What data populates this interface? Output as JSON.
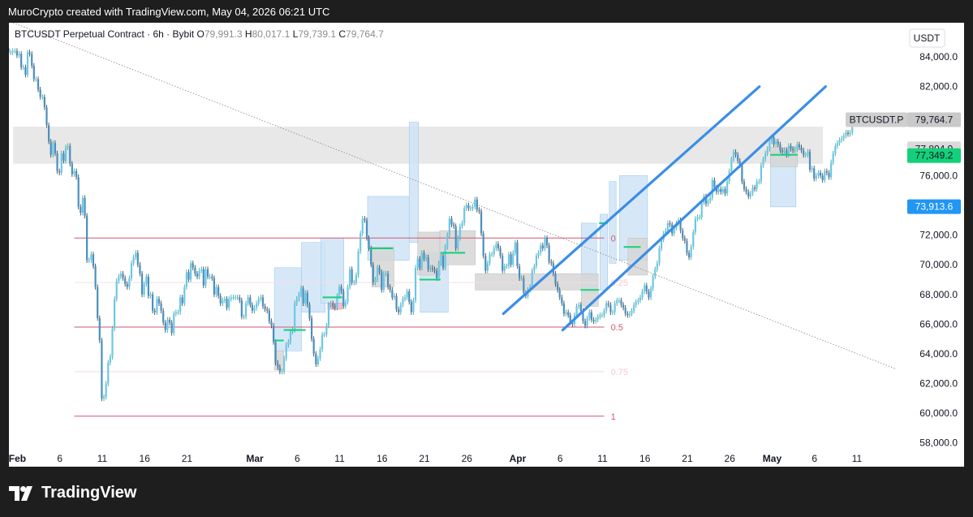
{
  "header": {
    "caption": "MuroCrypto created with TradingView.com, May 04, 2026 06:21 UTC"
  },
  "footer": {
    "brand": "TradingView"
  },
  "colors": {
    "up": "#26a69a",
    "body_up": "#6ec6e6",
    "body_down": "#4a8fbf",
    "fib": "#d0566f",
    "channel": "#3a8ee6",
    "zone": "#e8e8e8",
    "green_label": "#12d17a",
    "blue_label": "#2196f3"
  },
  "chart_data": {
    "type": "candlestick",
    "symbol_line": {
      "name": "BTCUSDT Perpetual Contract · 6h · Bybit",
      "o_label": "O",
      "o_value": "79,991.3",
      "h_label": "H",
      "h_value": "80,017.1",
      "l_label": "L",
      "l_value": "79,739.1",
      "c_label": "C",
      "c_value": "79,764.7"
    },
    "currency": "USDT",
    "y_axis": {
      "ticks": [
        "84,000.0",
        "82,000.0",
        "80,000.0",
        "78,000.0",
        "76,000.0",
        "74,000.0",
        "72,000.0",
        "70,000.0",
        "68,000.0",
        "66,000.0",
        "64,000.0",
        "62,000.0",
        "60,000.0",
        "58,000.0"
      ],
      "tick_values": [
        84000,
        82000,
        80000,
        78000,
        76000,
        74000,
        72000,
        70000,
        68000,
        66000,
        64000,
        62000,
        60000,
        58000
      ],
      "range": [
        57000,
        86300
      ]
    },
    "x_axis": {
      "ticks": [
        "Feb",
        "6",
        "11",
        "16",
        "21",
        "Mar",
        "6",
        "11",
        "16",
        "21",
        "26",
        "Apr",
        "6",
        "11",
        "16",
        "21",
        "26",
        "May",
        "6",
        "11"
      ],
      "bold": [
        true,
        false,
        false,
        false,
        false,
        true,
        false,
        false,
        false,
        false,
        false,
        true,
        false,
        false,
        false,
        false,
        false,
        true,
        false,
        false
      ],
      "tick_days": [
        0,
        5,
        10,
        15,
        20,
        28,
        33,
        38,
        43,
        48,
        53,
        59,
        64,
        69,
        74,
        79,
        84,
        89,
        94,
        99
      ],
      "range": [
        -1,
        103.5
      ]
    },
    "price_labels": [
      {
        "text": "BTCUSDT.P",
        "style": "dark-grey"
      },
      {
        "text": "79,764.7",
        "value": 79764.7,
        "style": "dark-grey"
      },
      {
        "text": "77,804.9",
        "value": 77804.9,
        "style": "grey"
      },
      {
        "text": "77,349.2",
        "value": 77349.2,
        "style": "green"
      },
      {
        "text": "73,913.6",
        "value": 73913.6,
        "style": "blue"
      }
    ],
    "fib_levels": [
      {
        "label": "0",
        "value": 71800
      },
      {
        "label": "0.25",
        "value": 68800
      },
      {
        "label": "0.5",
        "value": 65800
      },
      {
        "label": "0.75",
        "value": 62800
      },
      {
        "label": "1",
        "value": 59800
      }
    ],
    "fib_range": {
      "start_day": 6.7,
      "end_day": 69.2
    },
    "resistance_zone": {
      "low": 76800,
      "high": 79300,
      "start_day": -0.5,
      "end_day": 95
    },
    "channel": {
      "upper": {
        "from": [
          57.3,
          66700
        ],
        "to": [
          87.5,
          82000
        ]
      },
      "lower": {
        "from": [
          64.3,
          65600
        ],
        "to": [
          95.3,
          82000
        ]
      }
    },
    "trend_line": {
      "from": [
        -0.5,
        86300
      ],
      "to": [
        103.5,
        63000
      ]
    },
    "candles": {
      "start_day": -1.8,
      "step_days": 0.25,
      "opens": [
        85500,
        85400,
        84800,
        84600,
        84300,
        84300,
        84400,
        84400,
        84100,
        84200,
        83300,
        83300,
        82800,
        84300,
        84200,
        83400,
        82500,
        82500,
        81800,
        81300,
        81300,
        80600,
        79400,
        78300,
        77400,
        78200,
        77500,
        76300,
        76200,
        77500,
        77000,
        77900,
        78000,
        76800,
        76100,
        76300,
        75900,
        73900,
        73500,
        74500,
        73300,
        70300,
        70300,
        70700,
        69900,
        68500,
        66400,
        64900,
        61000,
        61100,
        62000,
        63400,
        63800,
        65700,
        67700,
        68900,
        69200,
        69400,
        69100,
        68700,
        68500,
        69100,
        70100,
        70500,
        70800,
        70000,
        69400,
        68000,
        68700,
        69200,
        67900,
        68000,
        66900,
        66800,
        67700,
        67400,
        66900,
        66100,
        65600,
        66300,
        66100,
        65400,
        66700,
        66800,
        66800,
        67800,
        67400,
        68500,
        69500,
        69000,
        70100,
        69800,
        69400,
        69200,
        69600,
        69700,
        68600,
        69700,
        69200,
        69200,
        69100,
        68000,
        68500,
        67900,
        67400,
        67600,
        67700,
        67100,
        67700,
        67800,
        67800,
        67800,
        67800,
        67600,
        66500,
        66500,
        67400,
        67800,
        67300,
        66900,
        67100,
        67400,
        67700,
        67800,
        67200,
        67000,
        66900,
        66200,
        65900,
        64800,
        63400,
        63100,
        62800,
        62800,
        63700,
        64600,
        64800,
        65500,
        65600,
        67400,
        67700,
        68000,
        68400,
        67400,
        68100,
        67300,
        66400,
        65000,
        64000,
        63300,
        63700,
        64300,
        65300,
        65300,
        65900,
        67300,
        67400,
        67200,
        67100,
        67900,
        68500,
        68200,
        67200,
        67500,
        68500,
        69700,
        68800,
        68800,
        69300,
        70900,
        72100,
        73100,
        73000,
        71800,
        71100,
        70000,
        68800,
        69000,
        69800,
        69500,
        68300,
        69400,
        69400,
        68500,
        68300,
        67800,
        67900,
        67000,
        66800,
        67300,
        67700,
        67800,
        68200,
        67500,
        66800,
        67600,
        69800,
        70400,
        69800,
        70800,
        70400,
        70500,
        69700,
        69800,
        69700,
        69600,
        69100,
        70100,
        70600,
        69800,
        71200,
        72000,
        73100,
        72700,
        72600,
        71100,
        71800,
        72600,
        72800,
        73800,
        74000,
        73800,
        73800,
        73900,
        74400,
        73700,
        73600,
        72100,
        70600,
        69600,
        70100,
        70700,
        70700,
        71100,
        71400,
        71100,
        70600,
        69600,
        69900,
        69900,
        70700,
        70000,
        70800,
        71500,
        69900,
        69100,
        69100,
        68100,
        67900,
        68300,
        68500,
        69600,
        69900,
        70600,
        70800,
        71300,
        71100,
        71800,
        71300,
        70200,
        70100,
        69400,
        68700,
        68300,
        67800,
        67400,
        66700,
        66800,
        66600,
        66100,
        66000,
        66600,
        67200,
        67300,
        66900,
        66200,
        65900,
        66400,
        66800,
        66300,
        66200,
        66300,
        66500,
        66600,
        66600,
        66900,
        67400,
        67300,
        66800,
        66800,
        67400,
        67600,
        67600,
        67300,
        67100,
        66700,
        66600,
        66700,
        66900,
        67300,
        67500,
        67600,
        67800,
        68200,
        68600,
        68200,
        67800,
        68400,
        69200,
        69700,
        70100,
        71100,
        71700,
        72100,
        72300,
        72800,
        72700,
        72100,
        72500,
        72800,
        73000,
        72300,
        71800,
        71600,
        70800,
        70500,
        71200,
        72200,
        73100,
        73200,
        73200,
        74200,
        74600,
        74100,
        74300,
        74500,
        75700,
        75200,
        74900,
        75100,
        74900,
        75100,
        74800,
        75600,
        76300,
        77100,
        77600,
        77400,
        77000,
        76700,
        75600,
        75100,
        74900,
        74600,
        74800,
        75200,
        75100,
        75600,
        75600,
        76700,
        77100,
        77500,
        77800,
        78300,
        78600,
        78100,
        78300,
        78100,
        77700,
        77600,
        77700,
        77400,
        78000,
        77800,
        77700,
        77800,
        78100,
        77900,
        77700,
        77400,
        77400,
        77600,
        76400,
        76500,
        75800,
        76000,
        76200,
        76000,
        75700,
        76300,
        76200,
        75900,
        76900,
        77500,
        78000,
        78200,
        78400,
        78500,
        78700,
        78900,
        78800,
        78900,
        79500,
        79900
      ],
      "closes": [
        85400,
        84800,
        84600,
        84300,
        84300,
        84400,
        84400,
        84100,
        84200,
        83300,
        83300,
        82800,
        84300,
        84200,
        83400,
        82500,
        82500,
        81800,
        81300,
        81300,
        80600,
        79400,
        78300,
        77400,
        78200,
        77500,
        76300,
        76200,
        77500,
        77000,
        77900,
        78000,
        76800,
        76100,
        76300,
        75900,
        73900,
        73500,
        74500,
        73300,
        70300,
        70300,
        70700,
        69900,
        68500,
        66400,
        64900,
        61000,
        61100,
        62000,
        63400,
        63800,
        65700,
        67700,
        68900,
        69200,
        69400,
        69100,
        68700,
        68500,
        69100,
        70100,
        70500,
        70800,
        70000,
        69400,
        68000,
        68700,
        69200,
        67900,
        68000,
        66900,
        66800,
        67700,
        67400,
        66900,
        66100,
        65600,
        66300,
        66100,
        65400,
        66700,
        66800,
        66800,
        67800,
        67400,
        68500,
        69500,
        69000,
        70100,
        69800,
        69400,
        69200,
        69600,
        69700,
        68600,
        69700,
        69200,
        69200,
        69100,
        68000,
        68500,
        67900,
        67400,
        67600,
        67700,
        67100,
        67700,
        67800,
        67800,
        67800,
        67800,
        67600,
        66500,
        66500,
        67400,
        67800,
        67300,
        66900,
        67100,
        67400,
        67700,
        67800,
        67200,
        67000,
        66900,
        66200,
        65900,
        64800,
        63400,
        63100,
        62800,
        62800,
        63700,
        64600,
        64800,
        65500,
        65600,
        67400,
        67700,
        68000,
        68400,
        67400,
        68100,
        67300,
        66400,
        65000,
        64000,
        63300,
        63700,
        64300,
        65300,
        65300,
        65900,
        67300,
        67400,
        67200,
        67100,
        67900,
        68500,
        68200,
        67200,
        67500,
        68500,
        69700,
        68800,
        68800,
        69300,
        70900,
        72100,
        73100,
        73000,
        71800,
        71100,
        70000,
        68800,
        69000,
        69800,
        69500,
        68300,
        69400,
        69400,
        68500,
        68300,
        67800,
        67900,
        67000,
        66800,
        67300,
        67700,
        67800,
        68200,
        67500,
        66800,
        67600,
        69800,
        70400,
        69800,
        70800,
        70400,
        70500,
        69700,
        69800,
        69700,
        69600,
        69100,
        70100,
        70600,
        69800,
        71200,
        72000,
        73100,
        72700,
        72600,
        71100,
        71800,
        72600,
        72800,
        73800,
        74000,
        73800,
        73800,
        73900,
        74400,
        73700,
        73600,
        72100,
        70600,
        69600,
        70100,
        70700,
        70700,
        71100,
        71400,
        71100,
        70600,
        69600,
        69900,
        69900,
        70700,
        70000,
        70800,
        71500,
        69900,
        69100,
        69100,
        68100,
        67900,
        68300,
        68500,
        69600,
        69900,
        70600,
        70800,
        71300,
        71100,
        71800,
        71300,
        70200,
        70100,
        69400,
        68700,
        68300,
        67800,
        67400,
        66700,
        66800,
        66600,
        66100,
        66000,
        66600,
        67200,
        67300,
        66900,
        66200,
        65900,
        66400,
        66800,
        66300,
        66200,
        66300,
        66500,
        66600,
        66600,
        66900,
        67400,
        67300,
        66800,
        66800,
        67400,
        67600,
        67600,
        67300,
        67100,
        66700,
        66600,
        66700,
        66900,
        67300,
        67500,
        67600,
        67800,
        68200,
        68600,
        68200,
        67800,
        68400,
        69200,
        69700,
        70100,
        71100,
        71700,
        72100,
        72300,
        72800,
        72700,
        72100,
        72500,
        72800,
        73000,
        72300,
        71800,
        71600,
        70800,
        70500,
        71200,
        72200,
        73100,
        73200,
        73200,
        74200,
        74600,
        74100,
        74300,
        74500,
        75700,
        75200,
        74900,
        75100,
        74900,
        75100,
        74800,
        75600,
        76300,
        77100,
        77600,
        77400,
        77000,
        76700,
        75600,
        75100,
        74900,
        74600,
        74800,
        75200,
        75100,
        75600,
        75600,
        76700,
        77100,
        77500,
        77800,
        78300,
        78600,
        78100,
        78300,
        78100,
        77700,
        77600,
        77700,
        77400,
        78000,
        77800,
        77700,
        77800,
        78100,
        77900,
        77700,
        77400,
        77400,
        77600,
        76400,
        76500,
        75800,
        76000,
        76200,
        76000,
        75700,
        76300,
        76200,
        75900,
        76900,
        77500,
        78000,
        78200,
        78400,
        78500,
        78700,
        78900,
        78800,
        78900,
        79500,
        79900,
        79800
      ]
    },
    "order_blocks": [
      {
        "d0": 46.2,
        "d1": 47.3,
        "lo": 71500,
        "hi": 79600,
        "type": "blue"
      },
      {
        "d0": 41.3,
        "d1": 46.2,
        "lo": 70300,
        "hi": 74600,
        "type": "blue"
      },
      {
        "d0": 33.5,
        "d1": 36.3,
        "lo": 66800,
        "hi": 71500,
        "type": "blue"
      },
      {
        "d0": 30.3,
        "d1": 33.5,
        "lo": 64200,
        "hi": 69800,
        "type": "blue"
      },
      {
        "d0": 35.8,
        "d1": 38.5,
        "lo": 67400,
        "hi": 71800,
        "type": "blue"
      },
      {
        "d0": 47.5,
        "d1": 50.8,
        "lo": 66800,
        "hi": 70800,
        "type": "blue"
      },
      {
        "d0": 66.5,
        "d1": 68.3,
        "lo": 68300,
        "hi": 72800,
        "type": "blue"
      },
      {
        "d0": 68.7,
        "d1": 69.6,
        "lo": 68300,
        "hi": 73400,
        "type": "blue"
      },
      {
        "d0": 69.8,
        "d1": 70.6,
        "lo": 70100,
        "hi": 75600,
        "type": "blue"
      },
      {
        "d0": 71.0,
        "d1": 74.3,
        "lo": 70300,
        "hi": 76000,
        "type": "blue"
      },
      {
        "d0": 88.8,
        "d1": 91.8,
        "lo": 73900,
        "hi": 77600,
        "type": "blue"
      },
      {
        "d0": 30.3,
        "d1": 31.4,
        "lo": 62900,
        "hi": 64200,
        "type": "grey"
      },
      {
        "d0": 41.8,
        "d1": 44.4,
        "lo": 68500,
        "hi": 71200,
        "type": "grey"
      },
      {
        "d0": 47.2,
        "d1": 49.9,
        "lo": 69300,
        "hi": 72200,
        "type": "grey"
      },
      {
        "d0": 49.8,
        "d1": 54.0,
        "lo": 70000,
        "hi": 72300,
        "type": "grey"
      },
      {
        "d0": 54.0,
        "d1": 68.5,
        "lo": 68300,
        "hi": 69400,
        "type": "grey"
      },
      {
        "d0": 66.5,
        "d1": 68.5,
        "lo": 67200,
        "hi": 68200,
        "type": "grey"
      },
      {
        "d0": 72.0,
        "d1": 74.3,
        "lo": 69300,
        "hi": 71800,
        "type": "grey"
      },
      {
        "d0": 88.8,
        "d1": 92.0,
        "lo": 76600,
        "hi": 77900,
        "type": "grey"
      },
      {
        "d0": 36.6,
        "d1": 38.3,
        "lo": 67000,
        "hi": 67400,
        "type": "pink"
      }
    ],
    "green_marks": [
      {
        "d0": 30.3,
        "d1": 31.4,
        "value": 64900
      },
      {
        "d0": 31.4,
        "d1": 34.0,
        "value": 65600
      },
      {
        "d0": 36.0,
        "d1": 38.3,
        "value": 67800
      },
      {
        "d0": 41.5,
        "d1": 44.3,
        "value": 71100
      },
      {
        "d0": 47.4,
        "d1": 49.9,
        "value": 69000
      },
      {
        "d0": 49.9,
        "d1": 52.8,
        "value": 70800
      },
      {
        "d0": 66.4,
        "d1": 68.6,
        "value": 68300
      },
      {
        "d0": 68.6,
        "d1": 69.6,
        "value": 72800
      },
      {
        "d0": 71.5,
        "d1": 73.5,
        "value": 71200
      },
      {
        "d0": 88.8,
        "d1": 92.0,
        "value": 77400
      }
    ]
  }
}
